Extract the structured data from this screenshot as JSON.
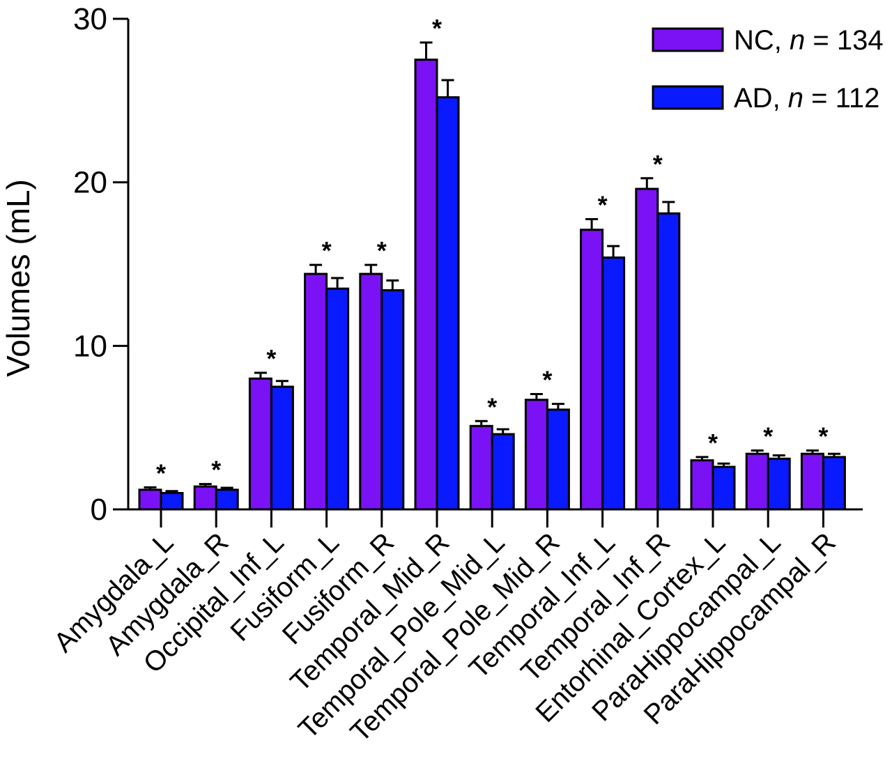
{
  "chart_data": {
    "type": "bar",
    "title": "",
    "xlabel": "",
    "ylabel": "Volumes (mL)",
    "ylim": [
      0,
      30
    ],
    "yticks": [
      "0",
      "10",
      "20",
      "30"
    ],
    "grid": false,
    "legend_position": "top-right",
    "categories": [
      "Amygdala_L",
      "Amygdala_R",
      "Occipital_Inf_L",
      "Fusiform_L",
      "Fusiform_R",
      "Temporal_Mid_R",
      "Temporal_Pole_Mid_L",
      "Temporal_Pole_Mid_R",
      "Temporal_Inf_L",
      "Temporal_Inf_R",
      "Entorhinal_Cortex_L",
      "ParaHippocampal_L",
      "ParaHippocampal_R"
    ],
    "series": [
      {
        "name": "NC",
        "n_text": "134",
        "color": "#7a12f5",
        "values": [
          1.2,
          1.4,
          8.0,
          14.4,
          14.4,
          27.5,
          5.1,
          6.7,
          17.1,
          19.6,
          3.0,
          3.4,
          3.4
        ],
        "errors": [
          0.15,
          0.15,
          0.35,
          0.55,
          0.55,
          1.05,
          0.3,
          0.35,
          0.65,
          0.65,
          0.2,
          0.2,
          0.2
        ]
      },
      {
        "name": "AD",
        "n_text": "112",
        "color": "#0a1aff",
        "values": [
          1.0,
          1.2,
          7.5,
          13.5,
          13.4,
          25.2,
          4.6,
          6.1,
          15.4,
          18.1,
          2.6,
          3.1,
          3.2
        ],
        "errors": [
          0.12,
          0.12,
          0.35,
          0.65,
          0.6,
          1.05,
          0.3,
          0.35,
          0.7,
          0.7,
          0.2,
          0.2,
          0.2
        ]
      }
    ],
    "significance_marker": "*",
    "significant": [
      true,
      true,
      true,
      true,
      true,
      true,
      true,
      true,
      true,
      true,
      true,
      true,
      true
    ]
  }
}
